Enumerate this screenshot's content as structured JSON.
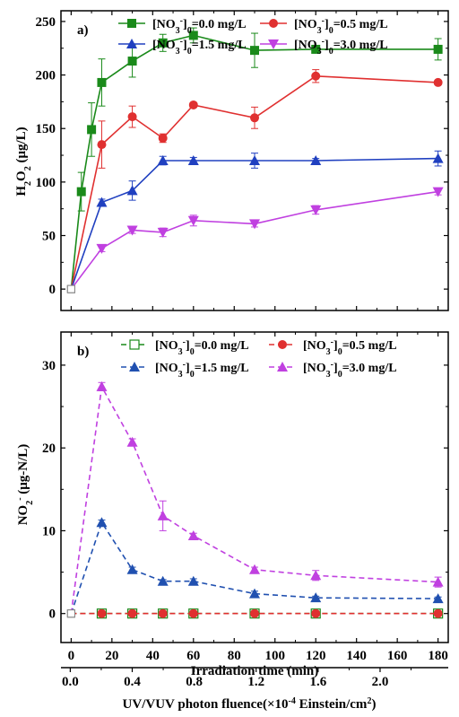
{
  "chart_data": [
    {
      "type": "line",
      "panel_label": "a)",
      "ylabel_main": "H",
      "ylabel_sub1": "2",
      "ylabel_mid": "O",
      "ylabel_sub2": "2",
      "ylabel_unit": " (μg/L)",
      "xlim": [
        -5,
        185
      ],
      "ylim": [
        -20,
        260
      ],
      "x_ticks": [
        0,
        20,
        40,
        60,
        80,
        100,
        120,
        140,
        160,
        180
      ],
      "y_ticks": [
        0,
        50,
        100,
        150,
        200,
        250
      ],
      "y_tick_labels": [
        "0",
        "50",
        "100",
        "150",
        "200",
        "250"
      ],
      "legend_position": "top",
      "series": [
        {
          "name_prefix": "[NO",
          "name_sub": "3",
          "name_sup": "-",
          "name_close": "]",
          "name_sub0": "0",
          "name_suffix": "=0.0 mg/L",
          "color": "#1a8a1a",
          "marker": "square",
          "dash": "solid",
          "x": [
            0,
            5,
            10,
            15,
            30,
            45,
            60,
            90,
            120,
            180
          ],
          "y": [
            0,
            91,
            149,
            193,
            213,
            230,
            237,
            223,
            224,
            224
          ],
          "err": [
            0,
            18,
            25,
            22,
            15,
            8,
            7,
            16,
            2,
            10
          ]
        },
        {
          "name_prefix": "[NO",
          "name_sub": "3",
          "name_sup": "-",
          "name_close": "]",
          "name_sub0": "0",
          "name_suffix": "=0.5 mg/L",
          "color": "#e03030",
          "marker": "circle",
          "dash": "solid",
          "x": [
            0,
            15,
            30,
            45,
            60,
            90,
            120,
            180
          ],
          "y": [
            0,
            135,
            161,
            141,
            172,
            160,
            199,
            193
          ],
          "err": [
            0,
            22,
            10,
            4,
            2,
            10,
            6,
            2
          ]
        },
        {
          "name_prefix": "[NO",
          "name_sub": "3",
          "name_sup": "-",
          "name_close": "]",
          "name_sub0": "0",
          "name_suffix": "=1.5 mg/L",
          "color": "#2040c0",
          "marker": "triangle-up",
          "dash": "solid",
          "x": [
            0,
            15,
            30,
            45,
            60,
            90,
            120,
            180
          ],
          "y": [
            0,
            81,
            92,
            120,
            120,
            120,
            120,
            122
          ],
          "err": [
            0,
            3,
            9,
            4,
            3,
            7,
            2,
            7
          ]
        },
        {
          "name_prefix": "[NO",
          "name_sub": "3",
          "name_sup": "-",
          "name_close": "]",
          "name_sub0": "0",
          "name_suffix": "=3.0 mg/L",
          "color": "#c040e0",
          "marker": "triangle-down",
          "dash": "solid",
          "x": [
            0,
            15,
            30,
            45,
            60,
            90,
            120,
            180
          ],
          "y": [
            0,
            38,
            55,
            53,
            64,
            61,
            74,
            91
          ],
          "err": [
            0,
            3,
            3,
            4,
            5,
            3,
            4,
            3
          ]
        }
      ]
    },
    {
      "type": "line",
      "panel_label": "b)",
      "ylabel_main": "NO",
      "ylabel_sub1": "2",
      "ylabel_sup": "-",
      "ylabel_unit": " (μg-N/L)",
      "xlabel": "Irradiation time (min)",
      "xlim": [
        -5,
        185
      ],
      "ylim": [
        -3.5,
        34
      ],
      "x_ticks": [
        0,
        20,
        40,
        60,
        80,
        100,
        120,
        140,
        160,
        180
      ],
      "x_tick_labels": [
        "0",
        "20",
        "40",
        "60",
        "80",
        "100",
        "120",
        "140",
        "160",
        "180"
      ],
      "y_ticks": [
        0,
        10,
        20,
        30
      ],
      "y_tick_labels": [
        "0",
        "10",
        "20",
        "30"
      ],
      "legend_position": "top",
      "series": [
        {
          "name_prefix": "[NO",
          "name_sub": "3",
          "name_sup": "-",
          "name_close": "]",
          "name_sub0": "0",
          "name_suffix": "=0.0 mg/L",
          "color": "#1a8a1a",
          "marker": "square-open",
          "dash": "dashed",
          "x": [
            0,
            15,
            30,
            45,
            60,
            90,
            120,
            180
          ],
          "y": [
            0,
            0,
            0,
            0,
            0,
            0,
            0,
            0
          ],
          "err": [
            0,
            0,
            0,
            0,
            0,
            0,
            0,
            0
          ]
        },
        {
          "name_prefix": "[NO",
          "name_sub": "3",
          "name_sup": "-",
          "name_close": "]",
          "name_sub0": "0",
          "name_suffix": "=0.5 mg/L",
          "color": "#e03030",
          "marker": "circle",
          "dash": "dashed",
          "x": [
            0,
            15,
            30,
            45,
            60,
            90,
            120,
            180
          ],
          "y": [
            0,
            0,
            0,
            0,
            0,
            0,
            0,
            0
          ],
          "err": [
            0,
            0,
            0,
            0,
            0,
            0,
            0,
            0
          ]
        },
        {
          "name_prefix": "[NO",
          "name_sub": "3",
          "name_sup": "-",
          "name_close": "]",
          "name_sub0": "0",
          "name_suffix": "=1.5 mg/L",
          "color": "#2050b0",
          "marker": "triangle-up",
          "dash": "dashed",
          "x": [
            0,
            15,
            30,
            45,
            60,
            90,
            120,
            180
          ],
          "y": [
            0,
            11.0,
            5.3,
            3.9,
            3.9,
            2.4,
            1.9,
            1.8
          ],
          "err": [
            0,
            0.3,
            0.3,
            0.2,
            0.3,
            0.3,
            0.2,
            0.2
          ]
        },
        {
          "name_prefix": "[NO",
          "name_sub": "3",
          "name_sup": "-",
          "name_close": "]",
          "name_sub0": "0",
          "name_suffix": "=3.0 mg/L",
          "color": "#c040e0",
          "marker": "triangle-up",
          "dash": "dashed",
          "x": [
            0,
            15,
            30,
            45,
            60,
            90,
            120,
            180
          ],
          "y": [
            0,
            27.4,
            20.7,
            11.8,
            9.4,
            5.3,
            4.6,
            3.8
          ],
          "err": [
            0,
            0.5,
            0.4,
            1.8,
            0.3,
            0.3,
            0.6,
            0.6
          ]
        }
      ],
      "secondary_xaxis": {
        "xlabel_prefix": "UV/VUV photon fluence(×10",
        "xlabel_sup": "-4",
        "xlabel_mid": " Einstein/cm",
        "xlabel_sup2": "2",
        "xlabel_suffix": ")",
        "ticks": [
          0.0,
          0.4,
          0.8,
          1.2,
          1.6,
          2.0
        ],
        "tick_labels": [
          "0.0",
          "0.4",
          "0.8",
          "1.2",
          "1.6",
          "2.0"
        ],
        "xlim": [
          -0.06,
          2.44
        ]
      }
    }
  ]
}
